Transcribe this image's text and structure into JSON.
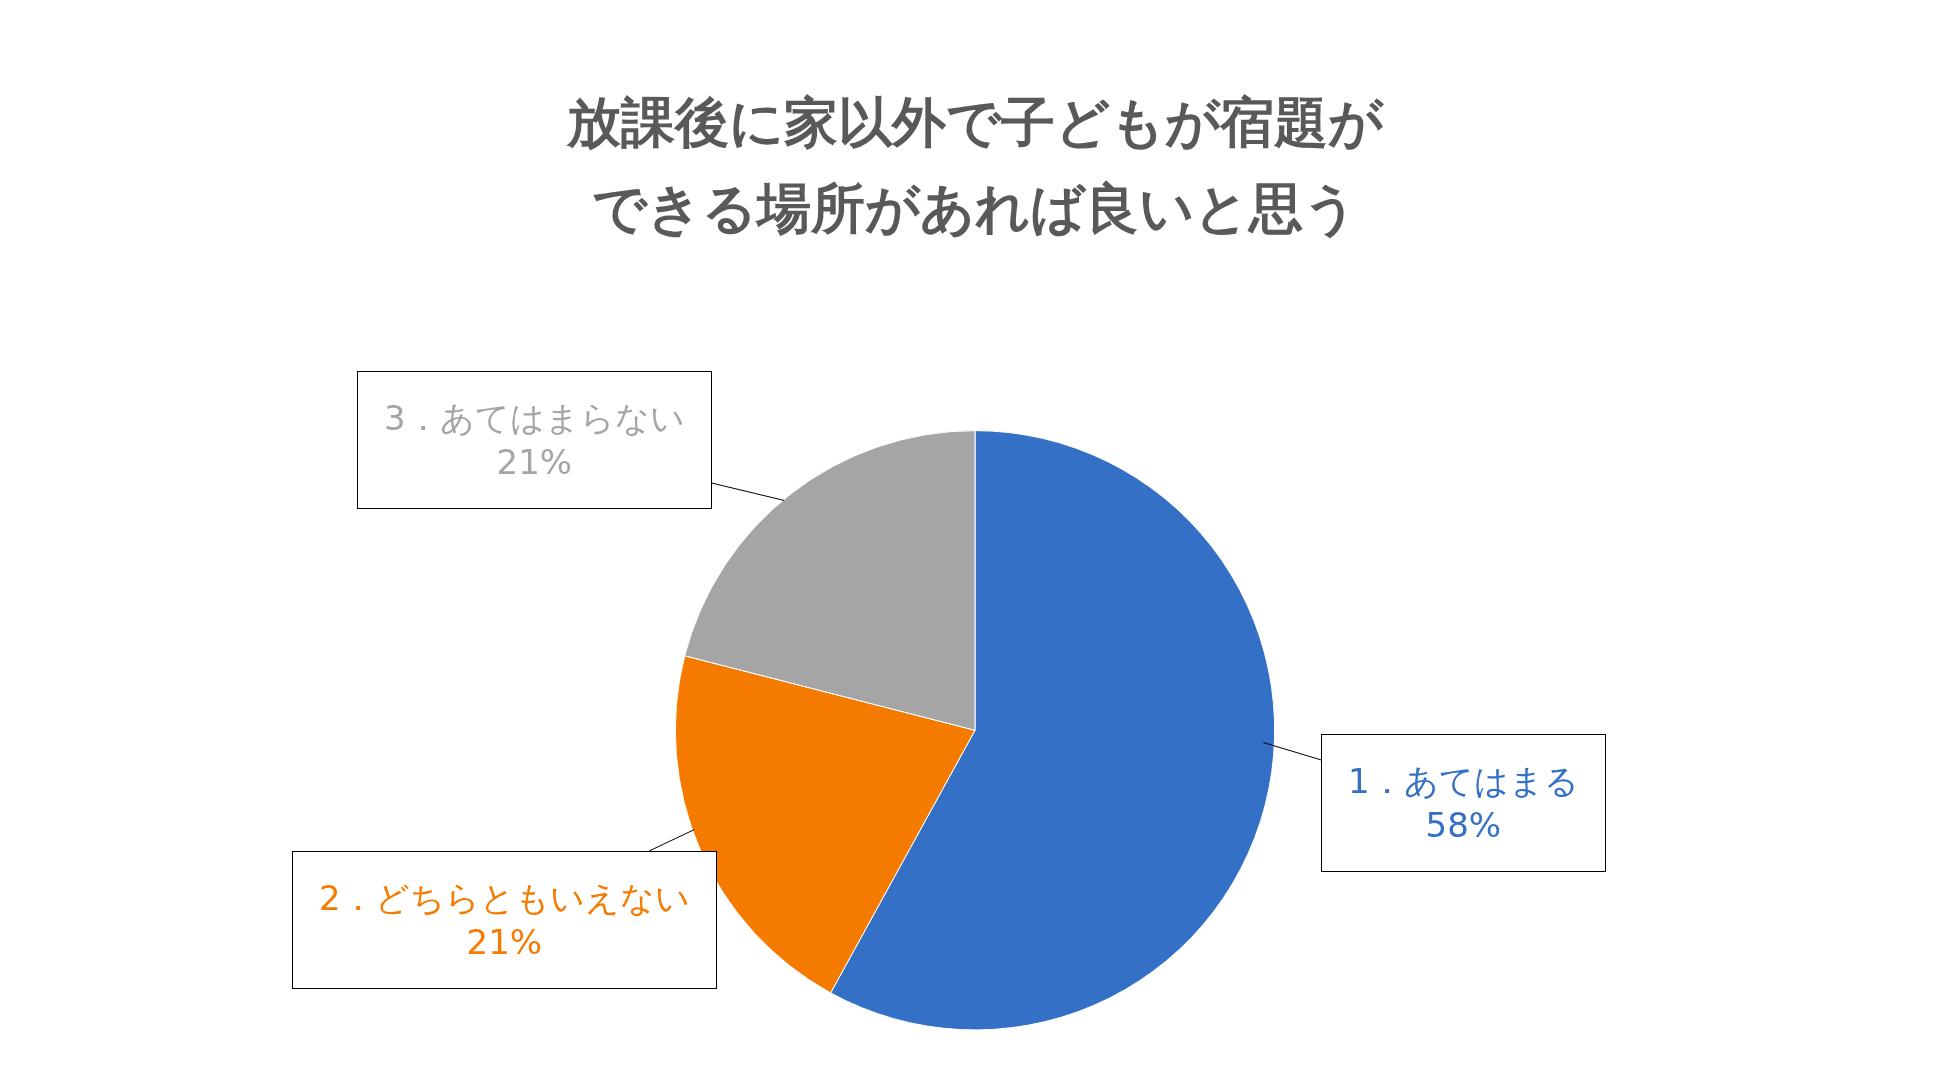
{
  "chart_data": {
    "type": "pie",
    "title": "放課後に家以外で子どもが宿題ができる場所があれば良いと思う",
    "categories": [
      "1．あてはまる",
      "2．どちらともいえない",
      "3．あてはまらない"
    ],
    "values": [
      58,
      21,
      21
    ],
    "colors": [
      "#3470c6",
      "#f47a00",
      "#a5a5a5"
    ],
    "value_labels": [
      "58%",
      "21%",
      "21%"
    ]
  }
}
